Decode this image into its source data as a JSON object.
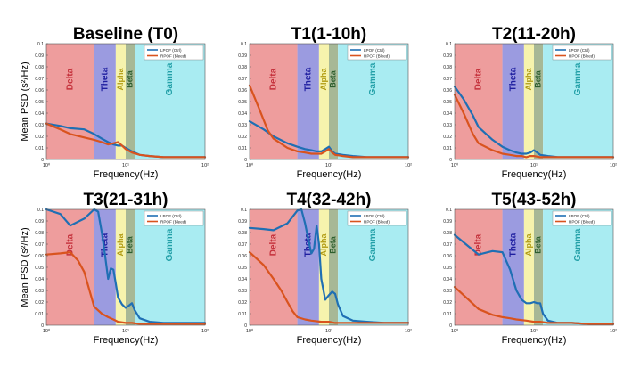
{
  "figure": {
    "ylabel": "Mean PSD (s²/Hz)",
    "xlabel": "Frequency(Hz)"
  },
  "chart_data": [
    {
      "type": "line",
      "title": "Baseline (T0)",
      "xscale": "log",
      "xlim": [
        1,
        100
      ],
      "ylim": [
        0,
        0.1
      ],
      "yticks": [
        "0",
        "0.01",
        "0.02",
        "0.03",
        "0.04",
        "0.05",
        "0.06",
        "0.07",
        "0.08",
        "0.09",
        "0.1"
      ],
      "xticks": [
        "10⁰",
        "10¹",
        "10²"
      ],
      "legend": [
        "LPOF (Ctrl)",
        "RPOF (Bleed)"
      ],
      "legend_position": "top-right",
      "bands": [
        {
          "name": "Delta",
          "from": 1,
          "to": 4,
          "fill": "#ee9d9d",
          "text": "#c4303a"
        },
        {
          "name": "Theta",
          "from": 4,
          "to": 7.5,
          "fill": "#9b9be0",
          "text": "#1f1fa0"
        },
        {
          "name": "Alpha",
          "from": 7.5,
          "to": 10,
          "fill": "#f6f3ad",
          "text": "#b09a10"
        },
        {
          "name": "Beta",
          "from": 10,
          "to": 13,
          "fill": "#a7b896",
          "text": "#2d5e2d"
        },
        {
          "name": "Gamma",
          "from": 13,
          "to": 100,
          "fill": "#a9ecf2",
          "text": "#23a0a8"
        }
      ],
      "series": [
        {
          "name": "LPOF (Ctrl)",
          "color": "#1f6fb4",
          "x": [
            1,
            1.5,
            2,
            3,
            4,
            5,
            6,
            7,
            8,
            9,
            10,
            12,
            15,
            20,
            30,
            50,
            100
          ],
          "y": [
            0.031,
            0.029,
            0.027,
            0.026,
            0.022,
            0.018,
            0.015,
            0.013,
            0.012,
            0.012,
            0.01,
            0.007,
            0.004,
            0.003,
            0.002,
            0.002,
            0.002
          ]
        },
        {
          "name": "RPOF (Bleed)",
          "color": "#d9531e",
          "x": [
            1,
            1.5,
            2,
            3,
            4,
            5,
            6,
            7,
            8,
            9,
            10,
            12,
            15,
            20,
            30,
            50,
            100
          ],
          "y": [
            0.031,
            0.026,
            0.022,
            0.019,
            0.017,
            0.015,
            0.013,
            0.014,
            0.015,
            0.012,
            0.009,
            0.006,
            0.004,
            0.003,
            0.002,
            0.002,
            0.002
          ]
        }
      ]
    },
    {
      "type": "line",
      "title": "T1(1-10h)",
      "xscale": "log",
      "xlim": [
        1,
        100
      ],
      "ylim": [
        0,
        0.1
      ],
      "yticks": [
        "0",
        "0.01",
        "0.02",
        "0.03",
        "0.04",
        "0.05",
        "0.06",
        "0.07",
        "0.08",
        "0.09",
        "0.1"
      ],
      "xticks": [
        "10⁰",
        "10¹",
        "10²"
      ],
      "legend": [
        "LPOF (Ctrl)",
        "RPOF (Bleed)"
      ],
      "legend_position": "top-right",
      "bands": [
        {
          "name": "Delta",
          "from": 1,
          "to": 4,
          "fill": "#ee9d9d",
          "text": "#c4303a"
        },
        {
          "name": "Theta",
          "from": 4,
          "to": 7.5,
          "fill": "#9b9be0",
          "text": "#1f1fa0"
        },
        {
          "name": "Alpha",
          "from": 7.5,
          "to": 10,
          "fill": "#f6f3ad",
          "text": "#b09a10"
        },
        {
          "name": "Beta",
          "from": 10,
          "to": 13,
          "fill": "#a7b896",
          "text": "#2d5e2d"
        },
        {
          "name": "Gamma",
          "from": 13,
          "to": 100,
          "fill": "#a9ecf2",
          "text": "#23a0a8"
        }
      ],
      "series": [
        {
          "name": "LPOF (Ctrl)",
          "color": "#1f6fb4",
          "x": [
            1,
            1.5,
            2,
            3,
            4,
            5,
            6,
            7,
            8,
            9,
            10,
            11,
            12,
            15,
            20,
            30,
            50,
            100
          ],
          "y": [
            0.033,
            0.026,
            0.02,
            0.014,
            0.011,
            0.009,
            0.008,
            0.007,
            0.007,
            0.009,
            0.011,
            0.007,
            0.005,
            0.004,
            0.003,
            0.002,
            0.002,
            0.002
          ]
        },
        {
          "name": "RPOF (Bleed)",
          "color": "#d9531e",
          "x": [
            1,
            1.3,
            1.7,
            2,
            3,
            4,
            5,
            6,
            7,
            8,
            9,
            10,
            11,
            12,
            15,
            20,
            30,
            50,
            100
          ],
          "y": [
            0.064,
            0.045,
            0.025,
            0.018,
            0.01,
            0.007,
            0.006,
            0.005,
            0.005,
            0.005,
            0.007,
            0.009,
            0.006,
            0.004,
            0.003,
            0.002,
            0.002,
            0.002,
            0.002
          ]
        }
      ]
    },
    {
      "type": "line",
      "title": "T2(11-20h)",
      "xscale": "log",
      "xlim": [
        1,
        100
      ],
      "ylim": [
        0,
        0.1
      ],
      "yticks": [
        "0",
        "0.01",
        "0.02",
        "0.03",
        "0.04",
        "0.05",
        "0.06",
        "0.07",
        "0.08",
        "0.09",
        "0.1"
      ],
      "xticks": [
        "10⁰",
        "10¹",
        "10²"
      ],
      "legend": [
        "LPOF (Ctrl)",
        "RPOF (Bleed)"
      ],
      "legend_position": "top-right",
      "bands": [
        {
          "name": "Delta",
          "from": 1,
          "to": 4,
          "fill": "#ee9d9d",
          "text": "#c4303a"
        },
        {
          "name": "Theta",
          "from": 4,
          "to": 7.5,
          "fill": "#9b9be0",
          "text": "#1f1fa0"
        },
        {
          "name": "Alpha",
          "from": 7.5,
          "to": 10,
          "fill": "#f6f3ad",
          "text": "#b09a10"
        },
        {
          "name": "Beta",
          "from": 10,
          "to": 13,
          "fill": "#a7b896",
          "text": "#2d5e2d"
        },
        {
          "name": "Gamma",
          "from": 13,
          "to": 100,
          "fill": "#a9ecf2",
          "text": "#23a0a8"
        }
      ],
      "series": [
        {
          "name": "LPOF (Ctrl)",
          "color": "#1f6fb4",
          "x": [
            1,
            1.3,
            1.7,
            2,
            3,
            4,
            5,
            6,
            7,
            8,
            9,
            10,
            11,
            12,
            15,
            20,
            30,
            50,
            100
          ],
          "y": [
            0.063,
            0.052,
            0.038,
            0.028,
            0.017,
            0.011,
            0.008,
            0.006,
            0.005,
            0.005,
            0.006,
            0.008,
            0.006,
            0.004,
            0.003,
            0.002,
            0.002,
            0.002,
            0.002
          ]
        },
        {
          "name": "RPOF (Bleed)",
          "color": "#d9531e",
          "x": [
            1,
            1.3,
            1.7,
            2,
            3,
            4,
            5,
            6,
            7,
            8,
            9,
            10,
            12,
            15,
            20,
            30,
            50,
            100
          ],
          "y": [
            0.056,
            0.04,
            0.022,
            0.014,
            0.008,
            0.005,
            0.004,
            0.003,
            0.003,
            0.002,
            0.003,
            0.003,
            0.002,
            0.002,
            0.002,
            0.002,
            0.002,
            0.002
          ]
        }
      ]
    },
    {
      "type": "line",
      "title": "T3(21-31h)",
      "xscale": "log",
      "xlim": [
        1,
        100
      ],
      "ylim": [
        0,
        0.1
      ],
      "yticks": [
        "0",
        "0.01",
        "0.02",
        "0.03",
        "0.04",
        "0.05",
        "0.06",
        "0.07",
        "0.08",
        "0.09",
        "0.1"
      ],
      "xticks": [
        "10⁰",
        "10¹",
        "10²"
      ],
      "legend": [
        "LPOF (Ctrl)",
        "RPOF (Bleed)"
      ],
      "legend_position": "top-right",
      "bands": [
        {
          "name": "Delta",
          "from": 1,
          "to": 4,
          "fill": "#ee9d9d",
          "text": "#c4303a"
        },
        {
          "name": "Theta",
          "from": 4,
          "to": 7.5,
          "fill": "#9b9be0",
          "text": "#1f1fa0"
        },
        {
          "name": "Alpha",
          "from": 7.5,
          "to": 10,
          "fill": "#f6f3ad",
          "text": "#b09a10"
        },
        {
          "name": "Beta",
          "from": 10,
          "to": 13,
          "fill": "#a7b896",
          "text": "#2d5e2d"
        },
        {
          "name": "Gamma",
          "from": 13,
          "to": 100,
          "fill": "#a9ecf2",
          "text": "#23a0a8"
        }
      ],
      "series": [
        {
          "name": "LPOF (Ctrl)",
          "color": "#1f6fb4",
          "x": [
            1,
            1.5,
            2,
            3,
            4,
            4.5,
            5,
            5.5,
            6,
            6.5,
            7,
            7.5,
            8,
            9,
            10,
            11,
            12,
            13,
            15,
            20,
            30,
            50,
            100
          ],
          "y": [
            0.1,
            0.096,
            0.086,
            0.092,
            0.1,
            0.098,
            0.08,
            0.06,
            0.04,
            0.049,
            0.048,
            0.036,
            0.024,
            0.018,
            0.015,
            0.017,
            0.019,
            0.013,
            0.006,
            0.003,
            0.002,
            0.002,
            0.002
          ]
        },
        {
          "name": "RPOF (Bleed)",
          "color": "#d9531e",
          "x": [
            1,
            1.5,
            2,
            2.5,
            3,
            3.5,
            4,
            5,
            6,
            7,
            8,
            10,
            12,
            15,
            20,
            30,
            50,
            100
          ],
          "y": [
            0.061,
            0.062,
            0.063,
            0.056,
            0.046,
            0.03,
            0.016,
            0.01,
            0.007,
            0.005,
            0.003,
            0.002,
            0.002,
            0.001,
            0.001,
            0.001,
            0.001,
            0.001
          ]
        }
      ]
    },
    {
      "type": "line",
      "title": "T4(32-42h)",
      "xscale": "log",
      "xlim": [
        1,
        100
      ],
      "ylim": [
        0,
        0.1
      ],
      "yticks": [
        "0",
        "0.01",
        "0.02",
        "0.03",
        "0.04",
        "0.05",
        "0.06",
        "0.07",
        "0.08",
        "0.09",
        "0.1"
      ],
      "xticks": [
        "10⁰",
        "10¹",
        "10²"
      ],
      "legend": [
        "LPOF (Ctrl)",
        "RPOF (Bleed)"
      ],
      "legend_position": "top-right",
      "bands": [
        {
          "name": "Delta",
          "from": 1,
          "to": 4,
          "fill": "#ee9d9d",
          "text": "#c4303a"
        },
        {
          "name": "Theta",
          "from": 4,
          "to": 7.5,
          "fill": "#9b9be0",
          "text": "#1f1fa0"
        },
        {
          "name": "Alpha",
          "from": 7.5,
          "to": 10,
          "fill": "#f6f3ad",
          "text": "#b09a10"
        },
        {
          "name": "Beta",
          "from": 10,
          "to": 13,
          "fill": "#a7b896",
          "text": "#2d5e2d"
        },
        {
          "name": "Gamma",
          "from": 13,
          "to": 100,
          "fill": "#a9ecf2",
          "text": "#23a0a8"
        }
      ],
      "series": [
        {
          "name": "LPOF (Ctrl)",
          "color": "#1f6fb4",
          "x": [
            1,
            1.5,
            2,
            3,
            4,
            4.5,
            5,
            5.5,
            6,
            6.5,
            7,
            7.5,
            8,
            9,
            10,
            11,
            12,
            13,
            15,
            20,
            30,
            50,
            100
          ],
          "y": [
            0.084,
            0.083,
            0.082,
            0.088,
            0.099,
            0.1,
            0.088,
            0.074,
            0.062,
            0.066,
            0.086,
            0.07,
            0.04,
            0.022,
            0.026,
            0.029,
            0.027,
            0.018,
            0.008,
            0.004,
            0.003,
            0.002,
            0.002
          ]
        },
        {
          "name": "RPOF (Bleed)",
          "color": "#d9531e",
          "x": [
            1,
            1.5,
            2,
            2.5,
            3,
            3.5,
            4,
            5,
            6,
            8,
            10,
            12,
            15,
            20,
            30,
            50,
            100
          ],
          "y": [
            0.063,
            0.052,
            0.04,
            0.03,
            0.02,
            0.012,
            0.007,
            0.005,
            0.004,
            0.003,
            0.003,
            0.002,
            0.002,
            0.002,
            0.002,
            0.002,
            0.002
          ]
        }
      ]
    },
    {
      "type": "line",
      "title": "T5(43-52h)",
      "xscale": "log",
      "xlim": [
        1,
        100
      ],
      "ylim": [
        0,
        0.1
      ],
      "yticks": [
        "0",
        "0.01",
        "0.02",
        "0.03",
        "0.04",
        "0.05",
        "0.06",
        "0.07",
        "0.08",
        "0.09",
        "0.1"
      ],
      "xticks": [
        "10⁰",
        "10¹",
        "10²"
      ],
      "legend": [
        "LPOF (Ctrl)",
        "RPOF (Bleed)"
      ],
      "legend_position": "top-right",
      "bands": [
        {
          "name": "Delta",
          "from": 1,
          "to": 4,
          "fill": "#ee9d9d",
          "text": "#c4303a"
        },
        {
          "name": "Theta",
          "from": 4,
          "to": 7.5,
          "fill": "#9b9be0",
          "text": "#1f1fa0"
        },
        {
          "name": "Alpha",
          "from": 7.5,
          "to": 10,
          "fill": "#f6f3ad",
          "text": "#b09a10"
        },
        {
          "name": "Beta",
          "from": 10,
          "to": 13,
          "fill": "#a7b896",
          "text": "#2d5e2d"
        },
        {
          "name": "Gamma",
          "from": 13,
          "to": 100,
          "fill": "#a9ecf2",
          "text": "#23a0a8"
        }
      ],
      "series": [
        {
          "name": "LPOF (Ctrl)",
          "color": "#1f6fb4",
          "x": [
            1,
            1.5,
            2,
            3,
            4,
            5,
            6,
            7,
            8,
            9,
            10,
            11,
            12,
            13,
            15,
            20,
            30,
            50,
            100
          ],
          "y": [
            0.078,
            0.068,
            0.061,
            0.064,
            0.063,
            0.048,
            0.03,
            0.022,
            0.019,
            0.019,
            0.02,
            0.019,
            0.019,
            0.01,
            0.004,
            0.002,
            0.002,
            0.001,
            0.001
          ]
        },
        {
          "name": "RPOF (Bleed)",
          "color": "#d9531e",
          "x": [
            1,
            1.5,
            2,
            3,
            4,
            5,
            6,
            8,
            10,
            12,
            15,
            20,
            30,
            50,
            100
          ],
          "y": [
            0.033,
            0.022,
            0.014,
            0.009,
            0.007,
            0.006,
            0.005,
            0.004,
            0.003,
            0.003,
            0.002,
            0.002,
            0.002,
            0.001,
            0.001
          ]
        }
      ]
    }
  ]
}
